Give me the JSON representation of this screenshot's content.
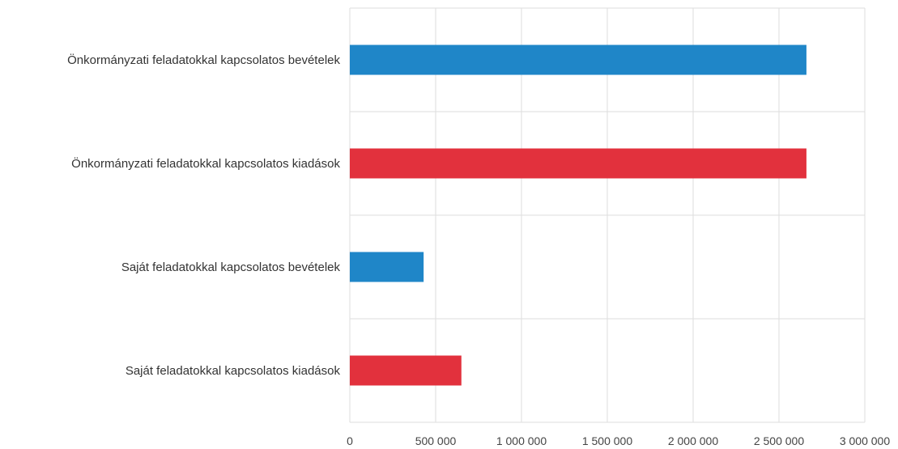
{
  "chart_data": {
    "type": "bar",
    "orientation": "horizontal",
    "categories": [
      "Önkormányzati feladatokkal kapcsolatos bevételek",
      "Önkormányzati feladatokkal kapcsolatos kiadások",
      "Saját feladatokkal kapcsolatos bevételek",
      "Saját feladatokkal kapcsolatos kiadások"
    ],
    "values": [
      2660000,
      2660000,
      430000,
      650000
    ],
    "bar_colors": [
      "#1f86c8",
      "#e2313d",
      "#1f86c8",
      "#e2313d"
    ],
    "xlim": [
      0,
      3000000
    ],
    "xticks": [
      0,
      500000,
      1000000,
      1500000,
      2000000,
      2500000,
      3000000
    ],
    "xtick_labels": [
      "0",
      "500 000",
      "1 000 000",
      "1 500 000",
      "2 000 000",
      "2 500 000",
      "3 000 000"
    ],
    "grid": true,
    "grid_color": "#dddddd",
    "legend": "none",
    "title": "",
    "xlabel": "",
    "ylabel": ""
  }
}
